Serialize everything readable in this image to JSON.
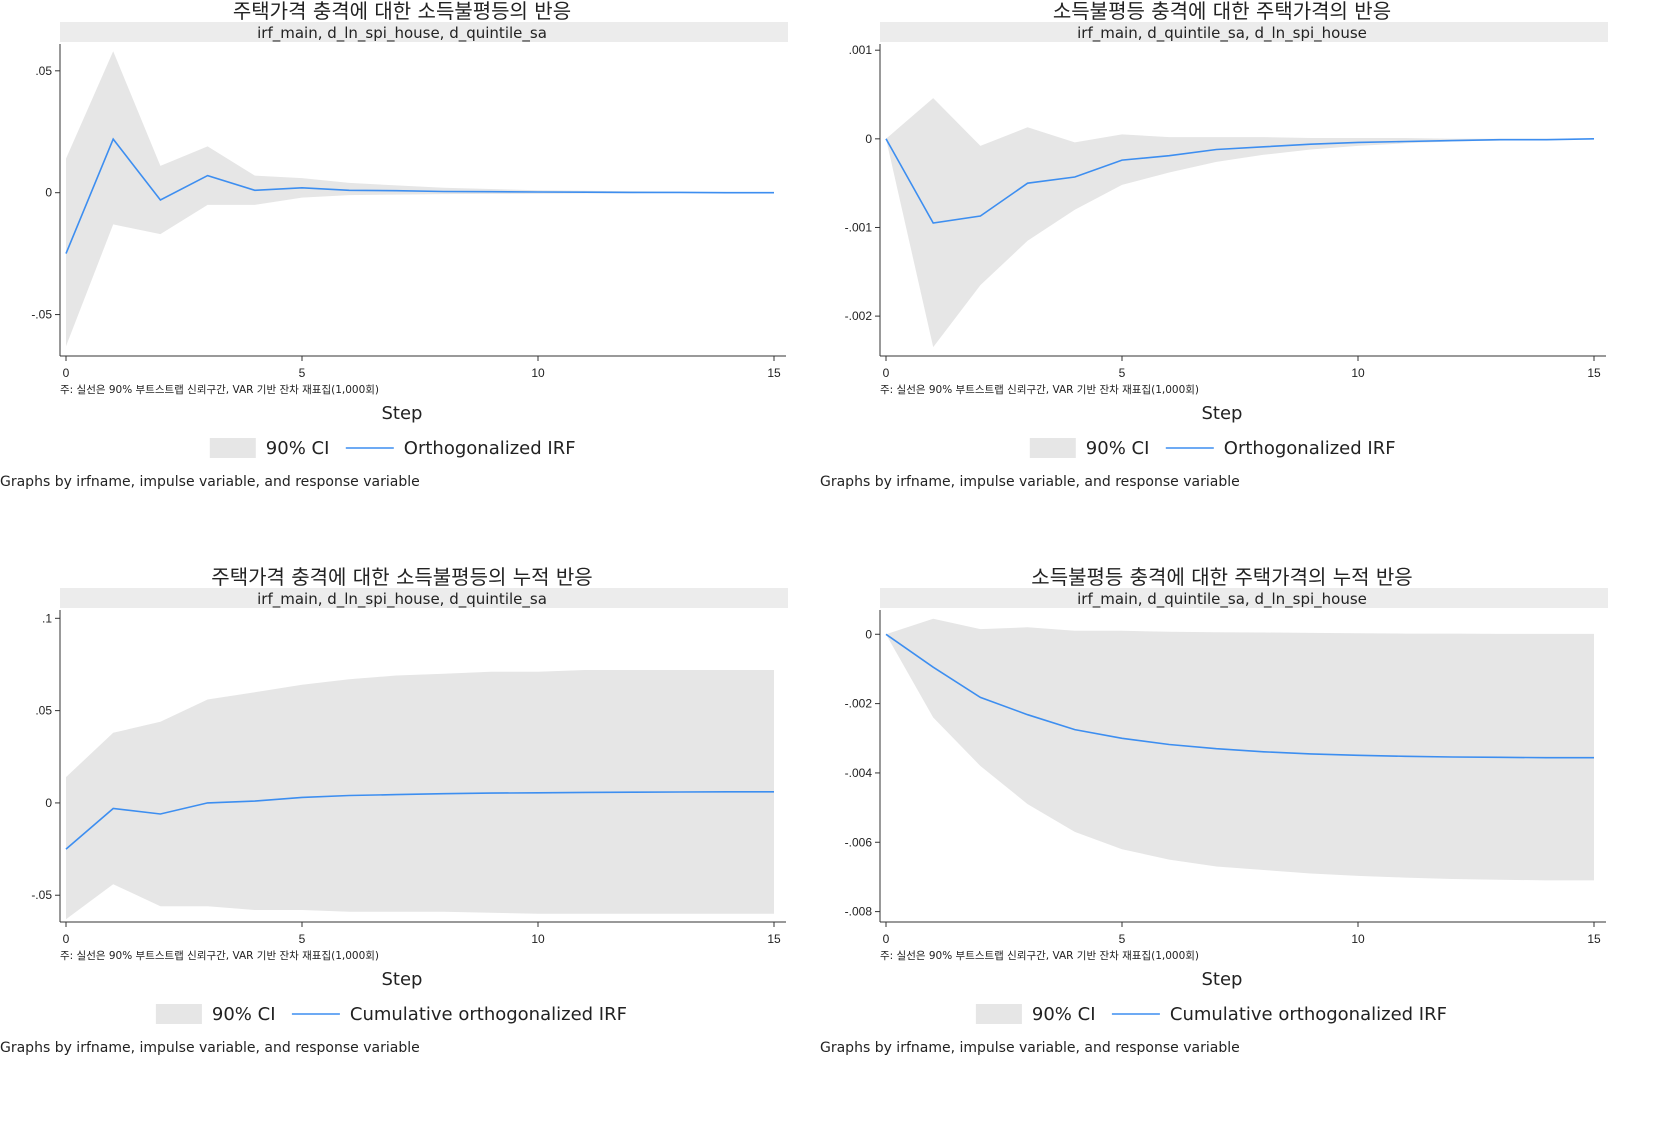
{
  "figure": {
    "note": "주: 실선은 90% 부트스트랩 신뢰구간, VAR 기반 잔차 재표집(1,000회)",
    "xlabel": "Step",
    "byline": "Graphs by irfname, impulse variable, and response variable",
    "ci_label": "90% CI"
  },
  "colors": {
    "line": "#3d8ef0",
    "ci_fill": "#e6e6e6",
    "strip": "#ececec",
    "axis": "#333333"
  },
  "chart_data": [
    {
      "type": "line",
      "title": "주택가격 충격에 대한 소득불평등의 반응",
      "subtitle": "irf_main, d_ln_spi_house, d_quintile_sa",
      "xlabel": "Step",
      "x_ticks": [
        0,
        5,
        10,
        15
      ],
      "y_ticks": [
        -0.05,
        0,
        0.05
      ],
      "y_tick_labels": [
        "-.05",
        "0",
        ".05"
      ],
      "xlim": [
        0,
        15
      ],
      "ylim": [
        -0.067,
        0.061
      ],
      "x": [
        0,
        1,
        2,
        3,
        4,
        5,
        6,
        7,
        8,
        9,
        10,
        11,
        12,
        13,
        14,
        15
      ],
      "series": [
        {
          "name": "Orthogonalized IRF",
          "values": [
            -0.025,
            0.022,
            -0.003,
            0.007,
            0.001,
            0.002,
            0.001,
            0.0008,
            0.0005,
            0.0004,
            0.0003,
            0.0002,
            0.0001,
            0.0001,
            0.0,
            0.0
          ]
        },
        {
          "name": "90% CI",
          "lower": [
            -0.063,
            -0.013,
            -0.017,
            -0.005,
            -0.005,
            -0.002,
            -0.001,
            -0.0008,
            -0.0006,
            -0.0005,
            -0.0004,
            -0.0003,
            -0.0002,
            -0.0001,
            -0.0001,
            0.0
          ],
          "upper": [
            0.014,
            0.058,
            0.011,
            0.019,
            0.007,
            0.006,
            0.004,
            0.003,
            0.002,
            0.0015,
            0.001,
            0.0008,
            0.0006,
            0.0004,
            0.0002,
            0.0001
          ]
        }
      ],
      "legend": [
        "90% CI",
        "Orthogonalized IRF"
      ]
    },
    {
      "type": "line",
      "title": "소득불평등 충격에 대한 주택가격의 반응",
      "subtitle": "irf_main, d_quintile_sa, d_ln_spi_house",
      "xlabel": "Step",
      "x_ticks": [
        0,
        5,
        10,
        15
      ],
      "y_ticks": [
        -0.002,
        -0.001,
        0,
        0.001
      ],
      "y_tick_labels": [
        "-.002",
        "-.001",
        "0",
        ".001"
      ],
      "xlim": [
        0,
        15
      ],
      "ylim": [
        -0.00245,
        0.00107
      ],
      "x": [
        0,
        1,
        2,
        3,
        4,
        5,
        6,
        7,
        8,
        9,
        10,
        11,
        12,
        13,
        14,
        15
      ],
      "series": [
        {
          "name": "Orthogonalized IRF",
          "values": [
            0.0,
            -0.00095,
            -0.00087,
            -0.0005,
            -0.00043,
            -0.00024,
            -0.00019,
            -0.00012,
            -9e-05,
            -6e-05,
            -4e-05,
            -3e-05,
            -2e-05,
            -1e-05,
            -1e-05,
            0.0
          ]
        },
        {
          "name": "90% CI",
          "lower": [
            0.0,
            -0.00235,
            -0.00165,
            -0.00115,
            -0.0008,
            -0.00052,
            -0.00038,
            -0.00026,
            -0.00018,
            -0.00012,
            -8e-05,
            -5e-05,
            -3e-05,
            -2e-05,
            -1e-05,
            0.0
          ],
          "upper": [
            0.0,
            0.00046,
            -8e-05,
            0.00013,
            -4e-05,
            5e-05,
            2e-05,
            2e-05,
            2e-05,
            1e-05,
            1e-05,
            1e-05,
            0.0,
            0.0,
            0.0,
            0.0
          ]
        }
      ],
      "legend": [
        "90% CI",
        "Orthogonalized IRF"
      ]
    },
    {
      "type": "line",
      "title": "주택가격 충격에 대한 소득불평등의 누적 반응",
      "subtitle": "irf_main, d_ln_spi_house, d_quintile_sa",
      "xlabel": "Step",
      "x_ticks": [
        0,
        5,
        10,
        15
      ],
      "y_ticks": [
        -0.05,
        0,
        0.05,
        0.1
      ],
      "y_tick_labels": [
        "-.05",
        "0",
        ".05",
        ".1"
      ],
      "xlim": [
        0,
        15
      ],
      "ylim": [
        -0.0645,
        0.1045
      ],
      "x": [
        0,
        1,
        2,
        3,
        4,
        5,
        6,
        7,
        8,
        9,
        10,
        11,
        12,
        13,
        14,
        15
      ],
      "series": [
        {
          "name": "Cumulative orthogonalized IRF",
          "values": [
            -0.025,
            -0.003,
            -0.006,
            0.0,
            0.001,
            0.003,
            0.004,
            0.0045,
            0.005,
            0.0053,
            0.0055,
            0.0057,
            0.0058,
            0.0059,
            0.006,
            0.006
          ]
        },
        {
          "name": "90% CI",
          "lower": [
            -0.063,
            -0.044,
            -0.056,
            -0.056,
            -0.058,
            -0.058,
            -0.059,
            -0.059,
            -0.059,
            -0.0595,
            -0.06,
            -0.06,
            -0.06,
            -0.06,
            -0.06,
            -0.06
          ],
          "upper": [
            0.014,
            0.038,
            0.044,
            0.056,
            0.06,
            0.064,
            0.067,
            0.069,
            0.07,
            0.071,
            0.071,
            0.072,
            0.072,
            0.072,
            0.072,
            0.072
          ]
        }
      ],
      "legend": [
        "90% CI",
        "Cumulative orthogonalized IRF"
      ]
    },
    {
      "type": "line",
      "title": "소득불평등 충격에 대한 주택가격의 누적 반응",
      "subtitle": "irf_main, d_quintile_sa, d_ln_spi_house",
      "xlabel": "Step",
      "x_ticks": [
        0,
        5,
        10,
        15
      ],
      "y_ticks": [
        -0.008,
        -0.006,
        -0.004,
        -0.002,
        0
      ],
      "y_tick_labels": [
        "-.008",
        "-.006",
        "-.004",
        "-.002",
        "0"
      ],
      "xlim": [
        0,
        15
      ],
      "ylim": [
        -0.0083,
        0.0007
      ],
      "x": [
        0,
        1,
        2,
        3,
        4,
        5,
        6,
        7,
        8,
        9,
        10,
        11,
        12,
        13,
        14,
        15
      ],
      "series": [
        {
          "name": "Cumulative orthogonalized IRF",
          "values": [
            0.0,
            -0.00095,
            -0.00182,
            -0.00232,
            -0.00275,
            -0.003,
            -0.00318,
            -0.0033,
            -0.00339,
            -0.00345,
            -0.00349,
            -0.00352,
            -0.00354,
            -0.00355,
            -0.00356,
            -0.00356
          ]
        },
        {
          "name": "90% CI",
          "lower": [
            0.0,
            -0.0024,
            -0.0038,
            -0.0049,
            -0.0057,
            -0.0062,
            -0.0065,
            -0.0067,
            -0.0068,
            -0.0069,
            -0.00697,
            -0.00702,
            -0.00706,
            -0.00708,
            -0.0071,
            -0.0071
          ],
          "upper": [
            0.0,
            0.00045,
            0.00015,
            0.0002,
            0.0001,
            0.0001,
            7e-05,
            6e-05,
            5e-05,
            4e-05,
            3e-05,
            2e-05,
            2e-05,
            1e-05,
            1e-05,
            1e-05
          ]
        }
      ],
      "legend": [
        "90% CI",
        "Cumulative orthogonalized IRF"
      ]
    }
  ]
}
